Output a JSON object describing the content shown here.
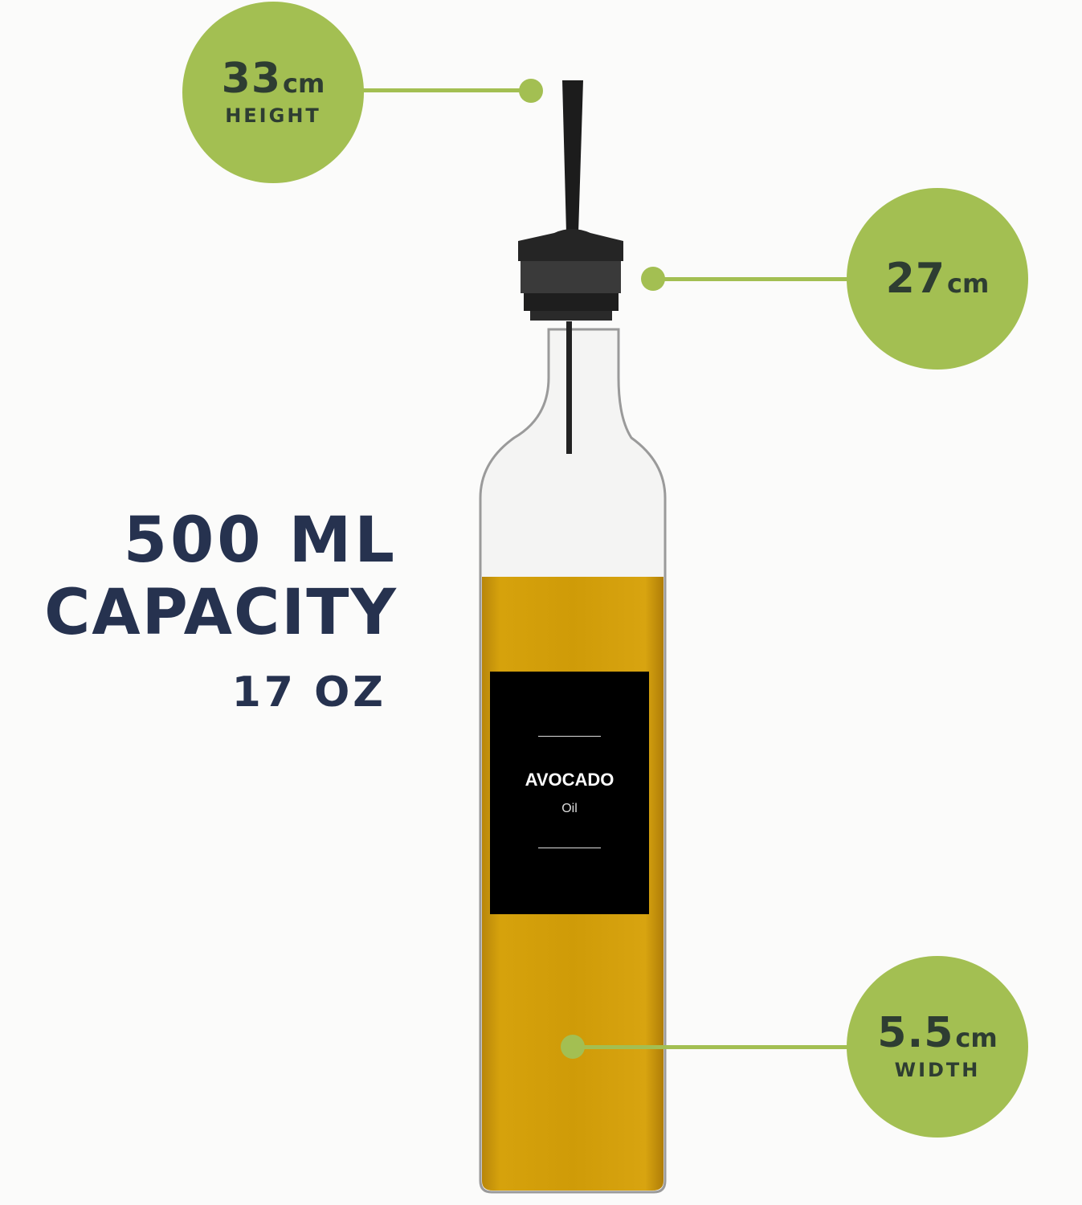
{
  "capacity": {
    "volume": "500 ML",
    "label": "CAPACITY",
    "imperial": "17 OZ"
  },
  "dimensions": [
    {
      "value": "33",
      "unit": "cm",
      "label": "HEIGHT"
    },
    {
      "value": "27",
      "unit": "cm",
      "label": ""
    },
    {
      "value": "5.5",
      "unit": "cm",
      "label": "WIDTH"
    }
  ],
  "bottle_label": {
    "title": "AVOCADO",
    "subtitle": "Oil"
  },
  "colors": {
    "accent": "#a3bf52",
    "text": "#26324f",
    "oil": "#d09c0a",
    "label": "#000000"
  }
}
